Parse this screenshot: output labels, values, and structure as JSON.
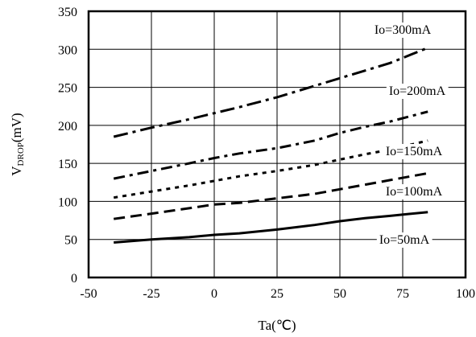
{
  "chart_data": {
    "type": "line",
    "xlabel": "Ta(℃)",
    "ylabel": "VDROP(mV)",
    "ylabel_main": "V",
    "ylabel_sub": "DROP",
    "ylabel_unit": "(mV)",
    "xlim": [
      -50,
      100
    ],
    "ylim": [
      0,
      350
    ],
    "x_ticks": [
      -50,
      -25,
      0,
      25,
      50,
      75,
      100
    ],
    "y_ticks": [
      0,
      50,
      100,
      150,
      200,
      250,
      300,
      350
    ],
    "grid": true,
    "series": [
      {
        "name": "Io=300mA",
        "line_style": "long-dash-dot",
        "x": [
          -40,
          -25,
          -10,
          0,
          10,
          25,
          40,
          50,
          60,
          70,
          85
        ],
        "y": [
          185,
          197,
          208,
          216,
          224,
          237,
          252,
          262,
          272,
          282,
          302
        ]
      },
      {
        "name": "Io=200mA",
        "line_style": "dash-dot",
        "x": [
          -40,
          -25,
          -10,
          0,
          10,
          25,
          40,
          50,
          60,
          70,
          85
        ],
        "y": [
          130,
          140,
          150,
          157,
          163,
          170,
          180,
          190,
          198,
          205,
          218
        ]
      },
      {
        "name": "Io=150mA",
        "line_style": "dotted",
        "x": [
          -40,
          -25,
          -10,
          0,
          10,
          25,
          40,
          50,
          60,
          70,
          85
        ],
        "y": [
          105,
          113,
          121,
          127,
          133,
          140,
          148,
          155,
          162,
          168,
          180
        ]
      },
      {
        "name": "Io=100mA",
        "line_style": "dashed",
        "x": [
          -40,
          -25,
          -10,
          0,
          10,
          25,
          40,
          50,
          60,
          70,
          85
        ],
        "y": [
          77,
          84,
          91,
          96,
          98,
          104,
          110,
          116,
          122,
          128,
          137
        ]
      },
      {
        "name": "Io=50mA",
        "line_style": "solid",
        "x": [
          -40,
          -25,
          -10,
          0,
          10,
          25,
          40,
          50,
          60,
          70,
          85
        ],
        "y": [
          46,
          50,
          53,
          56,
          58,
          63,
          69,
          74,
          78,
          81,
          86
        ]
      }
    ]
  }
}
